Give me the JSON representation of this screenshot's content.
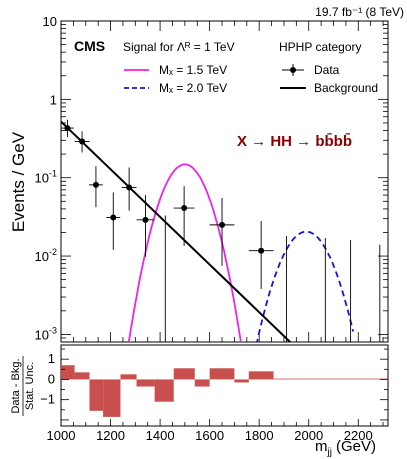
{
  "chart_data": [
    {
      "type": "scatter",
      "lumi_label": "19.7 fb⁻¹ (8 TeV)",
      "cms_label": "CMS",
      "signal_header": "Signal for Λᴿ = 1 TeV",
      "category_label": "HPHP category",
      "process_label": "X → HH → bb̄bb̄",
      "ylabel": "Events / GeV",
      "xlim": [
        1000,
        2320
      ],
      "ylim": [
        0.0008,
        10
      ],
      "yscale": "log",
      "legend": {
        "signal_1": "Mₓ = 1.5 TeV",
        "signal_2": "Mₓ = 2.0 TeV",
        "data": "Data",
        "background": "Background"
      },
      "colors": {
        "signal_1": "#ee22ee",
        "signal_2": "#1515d8",
        "data": "#000000",
        "background": "#000000",
        "process_label": "#8b0000"
      },
      "data_points": [
        {
          "x": 1026,
          "xerr": 26,
          "y": 0.43,
          "ylo": 0.33,
          "yhi": 0.55
        },
        {
          "x": 1085,
          "xerr": 30,
          "y": 0.29,
          "ylo": 0.21,
          "yhi": 0.39
        },
        {
          "x": 1141,
          "xerr": 28,
          "y": 0.081,
          "ylo": 0.042,
          "yhi": 0.14
        },
        {
          "x": 1211,
          "xerr": 28,
          "y": 0.031,
          "ylo": 0.012,
          "yhi": 0.065
        },
        {
          "x": 1275,
          "xerr": 30,
          "y": 0.075,
          "ylo": 0.038,
          "yhi": 0.135
        },
        {
          "x": 1341,
          "xerr": 36,
          "y": 0.029,
          "ylo": 0.0098,
          "yhi": 0.06
        },
        {
          "x": 1421,
          "xerr": 40,
          "y": 0,
          "ylo": 0,
          "yhi": 0.033
        },
        {
          "x": 1497,
          "xerr": 42,
          "y": 0.041,
          "ylo": 0.0135,
          "yhi": 0.078
        },
        {
          "x": 1650,
          "xerr": 50,
          "y": 0.025,
          "ylo": 0.0075,
          "yhi": 0.055
        },
        {
          "x": 1808,
          "xerr": 50,
          "y": 0.0117,
          "ylo": 0.0038,
          "yhi": 0.028
        },
        {
          "x": 1910,
          "xerr": 50,
          "y": 0,
          "ylo": 0,
          "yhi": 0.018
        },
        {
          "x": 2067,
          "xerr": 55,
          "y": 0,
          "ylo": 0,
          "yhi": 0.017
        },
        {
          "x": 2169,
          "xerr": 55,
          "y": 0,
          "ylo": 0,
          "yhi": 0.016
        },
        {
          "x": 2287,
          "xerr": 60,
          "y": 0,
          "ylo": 0,
          "yhi": 0.014
        }
      ],
      "background_line": {
        "x": [
          1000,
          1925
        ],
        "y": [
          0.52,
          0.0008
        ]
      },
      "signal_curves": [
        {
          "name": "Mₓ = 1.5 TeV",
          "mean": 1500,
          "sigma": 70,
          "peak": 0.148,
          "xrange": [
            1255,
            1750
          ]
        },
        {
          "name": "Mₓ = 2.0 TeV",
          "mean": 1990,
          "sigma": 78,
          "peak": 0.0205,
          "xrange": [
            1735,
            2180
          ]
        }
      ]
    },
    {
      "type": "bar",
      "ylabel_line1": "Data - Bkg.",
      "ylabel_line2": "Stat. Unc.",
      "xlabel": "m",
      "xlabel_sub": "jj",
      "xlabel_unit": "(GeV)",
      "xlim": [
        1000,
        2320
      ],
      "ylim": [
        -2.3,
        1.7
      ],
      "yticks": [
        -1,
        0,
        1
      ],
      "xticks": [
        1000,
        1200,
        1400,
        1600,
        1800,
        2000,
        2200
      ],
      "color": "#c94e4e",
      "bins": [
        {
          "x0": 1000,
          "x1": 1055,
          "value": 0.7
        },
        {
          "x0": 1055,
          "x1": 1115,
          "value": 0.35
        },
        {
          "x0": 1115,
          "x1": 1170,
          "value": -1.55
        },
        {
          "x0": 1170,
          "x1": 1240,
          "value": -1.85
        },
        {
          "x0": 1240,
          "x1": 1305,
          "value": 0.25
        },
        {
          "x0": 1305,
          "x1": 1378,
          "value": -0.35
        },
        {
          "x0": 1378,
          "x1": 1455,
          "value": -1.1
        },
        {
          "x0": 1455,
          "x1": 1540,
          "value": 0.55
        },
        {
          "x0": 1540,
          "x1": 1600,
          "value": -0.35
        },
        {
          "x0": 1600,
          "x1": 1700,
          "value": 0.55
        },
        {
          "x0": 1700,
          "x1": 1758,
          "value": -0.15
        },
        {
          "x0": 1758,
          "x1": 1858,
          "value": 0.4
        },
        {
          "x0": 1858,
          "x1": 2320,
          "value": 0.04
        }
      ]
    }
  ]
}
